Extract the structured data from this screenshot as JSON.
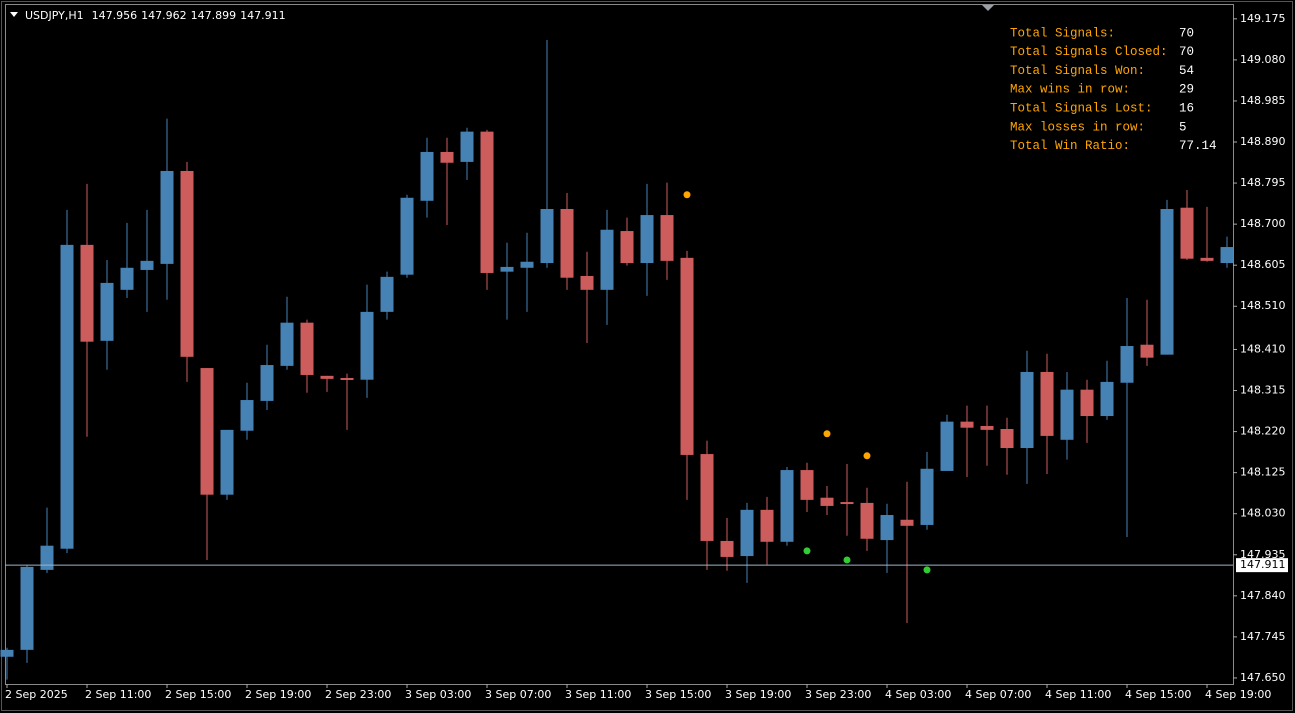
{
  "chart_data": {
    "type": "candlestick",
    "symbol": "USDJPY,H1",
    "header_values": [
      147.956,
      147.962,
      147.899,
      147.911
    ],
    "up_color": "#4682b4",
    "down_color": "#cd5c5c",
    "categories": [
      "2 Sep 2025",
      null,
      null,
      null,
      "2 Sep 11:00",
      null,
      null,
      null,
      "2 Sep 15:00",
      null,
      null,
      null,
      "2 Sep 19:00",
      null,
      null,
      null,
      "2 Sep 23:00",
      null,
      null,
      null,
      "3 Sep 03:00",
      null,
      null,
      null,
      "3 Sep 07:00",
      null,
      null,
      null,
      "3 Sep 11:00",
      null,
      null,
      null,
      "3 Sep 15:00",
      null,
      null,
      null,
      "3 Sep 19:00",
      null,
      null,
      null,
      "3 Sep 23:00",
      null,
      null,
      null,
      "4 Sep 03:00",
      null,
      null,
      null,
      "4 Sep 07:00",
      null,
      null,
      null,
      "4 Sep 11:00",
      null,
      null,
      null,
      "4 Sep 15:00",
      null,
      null,
      null,
      "4 Sep 19:00",
      null
    ],
    "open": [
      147.699,
      147.715,
      147.9,
      147.949,
      148.652,
      148.43,
      148.548,
      148.594,
      148.608,
      148.823,
      148.367,
      148.074,
      148.222,
      148.291,
      148.372,
      148.472,
      148.349,
      148.344,
      148.34,
      148.497,
      148.583,
      148.754,
      148.867,
      148.844,
      148.914,
      148.59,
      148.599,
      148.61,
      148.735,
      148.58,
      148.548,
      148.684,
      148.61,
      148.721,
      148.622,
      148.168,
      147.967,
      147.932,
      148.039,
      147.965,
      148.131,
      148.067,
      148.057,
      148.055,
      147.969,
      148.016,
      148.004,
      148.129,
      148.243,
      148.233,
      148.226,
      148.182,
      148.358,
      148.201,
      148.317,
      148.256,
      148.333,
      148.421,
      148.398,
      148.738,
      148.622,
      148.61
    ],
    "high": [
      147.72,
      147.912,
      148.044,
      148.733,
      148.793,
      148.617,
      148.703,
      148.733,
      148.944,
      148.844,
      148.367,
      148.224,
      148.333,
      148.421,
      148.532,
      148.479,
      148.349,
      148.354,
      148.56,
      148.59,
      148.768,
      148.9,
      148.9,
      148.923,
      148.918,
      148.657,
      148.68,
      149.126,
      148.772,
      148.636,
      148.733,
      148.715,
      148.793,
      148.796,
      148.638,
      148.199,
      148.02,
      148.055,
      148.069,
      148.138,
      148.148,
      148.094,
      148.145,
      148.09,
      148.053,
      148.104,
      148.173,
      148.259,
      148.28,
      148.28,
      148.252,
      148.407,
      148.4,
      148.358,
      148.34,
      148.384,
      148.529,
      148.525,
      148.756,
      148.779,
      148.74,
      148.671
    ],
    "low": [
      147.646,
      147.685,
      147.893,
      147.939,
      148.208,
      148.363,
      148.529,
      148.497,
      148.525,
      148.335,
      147.923,
      148.062,
      148.201,
      148.27,
      148.363,
      148.31,
      148.312,
      148.224,
      148.298,
      148.479,
      148.576,
      148.715,
      148.698,
      148.802,
      148.548,
      148.479,
      148.497,
      148.599,
      148.548,
      148.425,
      148.467,
      148.604,
      148.534,
      148.571,
      148.062,
      147.9,
      147.898,
      147.87,
      147.912,
      147.956,
      148.034,
      148.027,
      147.979,
      147.944,
      147.893,
      147.777,
      147.993,
      148.129,
      148.115,
      148.141,
      148.12,
      148.099,
      148.122,
      148.155,
      148.194,
      148.247,
      147.976,
      148.372,
      148.398,
      148.617,
      148.613,
      148.599
    ],
    "close": [
      147.715,
      147.907,
      147.956,
      148.652,
      148.428,
      148.564,
      148.599,
      148.615,
      148.823,
      148.393,
      148.074,
      148.224,
      148.293,
      148.374,
      148.472,
      148.351,
      148.342,
      148.34,
      148.497,
      148.578,
      148.761,
      148.867,
      148.842,
      148.914,
      148.587,
      148.601,
      148.613,
      148.735,
      148.576,
      148.548,
      148.687,
      148.61,
      148.721,
      148.615,
      148.166,
      147.967,
      147.93,
      148.039,
      147.965,
      148.131,
      148.062,
      148.048,
      148.053,
      147.972,
      148.027,
      148.002,
      148.134,
      148.243,
      148.229,
      148.224,
      148.182,
      148.358,
      148.21,
      148.317,
      148.256,
      148.335,
      148.418,
      148.391,
      148.735,
      148.62,
      148.615,
      148.647
    ],
    "sell_signals": {
      "color": "#ffa500",
      "values": [
        null,
        null,
        null,
        null,
        null,
        null,
        null,
        null,
        null,
        null,
        null,
        null,
        null,
        null,
        null,
        null,
        null,
        null,
        null,
        null,
        null,
        null,
        null,
        null,
        null,
        null,
        null,
        null,
        null,
        null,
        null,
        null,
        null,
        null,
        148.768,
        null,
        null,
        null,
        null,
        null,
        null,
        148.215,
        null,
        148.164,
        null,
        null,
        null,
        null,
        null,
        null,
        null,
        null,
        null,
        null,
        null,
        null,
        null,
        null,
        null,
        null,
        null,
        null
      ]
    },
    "buy_signals": {
      "color": "#32cd32",
      "values": [
        null,
        null,
        null,
        null,
        null,
        null,
        null,
        null,
        null,
        null,
        null,
        null,
        null,
        null,
        null,
        null,
        null,
        null,
        null,
        null,
        null,
        null,
        null,
        null,
        null,
        null,
        null,
        null,
        null,
        null,
        null,
        null,
        null,
        null,
        null,
        null,
        null,
        null,
        null,
        null,
        147.944,
        null,
        147.923,
        null,
        null,
        null,
        147.9,
        null,
        null,
        null,
        null,
        null,
        null,
        null,
        null,
        null,
        null,
        null,
        null,
        null,
        null,
        null
      ]
    },
    "price_line": 147.911,
    "ylim": [
      147.636,
      149.207
    ],
    "yticks": [
      {
        "value": 149.175,
        "label": "149.175"
      },
      {
        "value": 149.08,
        "label": "149.080"
      },
      {
        "value": 148.985,
        "label": "148.985"
      },
      {
        "value": 148.89,
        "label": "148.890"
      },
      {
        "value": 148.795,
        "label": "148.795"
      },
      {
        "value": 148.7,
        "label": "148.700"
      },
      {
        "value": 148.605,
        "label": "148.605"
      },
      {
        "value": 148.51,
        "label": "148.510"
      },
      {
        "value": 148.41,
        "label": "148.410"
      },
      {
        "value": 148.315,
        "label": "148.315"
      },
      {
        "value": 148.22,
        "label": "148.220"
      },
      {
        "value": 148.125,
        "label": "148.125"
      },
      {
        "value": 148.03,
        "label": "148.030"
      },
      {
        "value": 147.935,
        "label": "147.935"
      },
      {
        "value": 147.84,
        "label": "147.840"
      },
      {
        "value": 147.745,
        "label": "147.745"
      },
      {
        "value": 147.65,
        "label": "147.650"
      }
    ],
    "stats": [
      {
        "label": "Total Signals:",
        "value": 70
      },
      {
        "label": "Total Signals Closed:",
        "value": 70
      },
      {
        "label": "Total Signals Won:",
        "value": 54
      },
      {
        "label": "Max wins in row:",
        "value": 29
      },
      {
        "label": "Total Signals Lost:",
        "value": 16
      },
      {
        "label": "Max losses in row:",
        "value": 5
      },
      {
        "label": "Total Win Ratio:",
        "value": 77.14
      }
    ]
  }
}
